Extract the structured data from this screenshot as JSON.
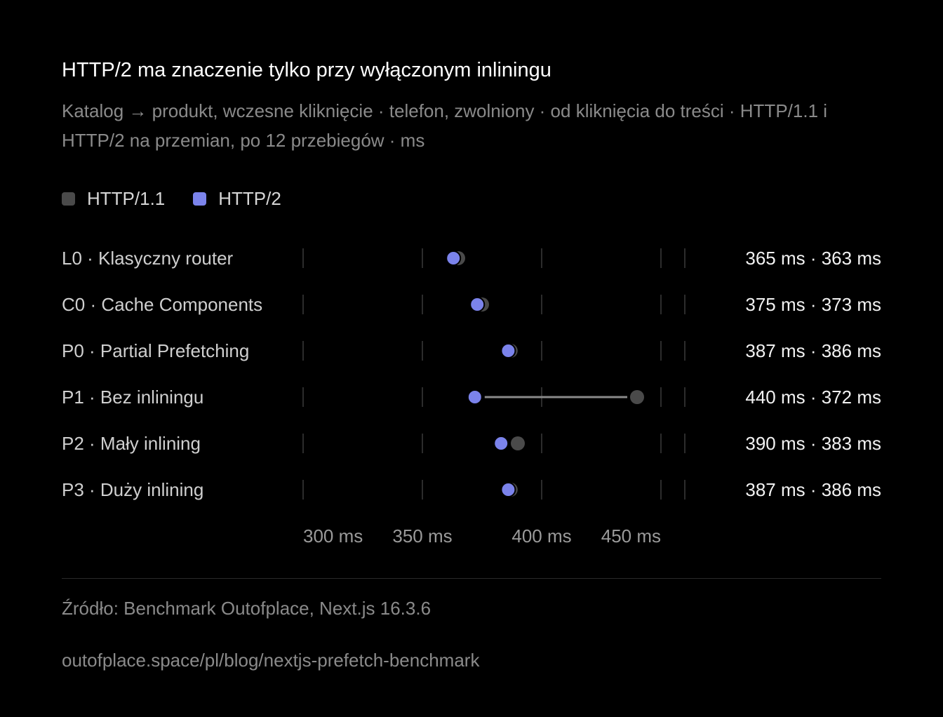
{
  "title": "HTTP/2 ma znaczenie tylko przy wyłączonym inliningu",
  "subtitle": "Katalog → produkt, wczesne kliknięcie · telefon, zwolniony · od kliknięcia do treści · HTTP/1.1 i HTTP/2 na przemian, po 12 przebiegów · ms",
  "legend": [
    {
      "label": "HTTP/1.1",
      "color": "#4a4a4a"
    },
    {
      "label": "HTTP/2",
      "color": "#7b83eb"
    }
  ],
  "footer": {
    "source": "Źródło: Benchmark Outofplace, Next.js 16.3.6",
    "url": "outofplace.space/pl/blog/nextjs-prefetch-benchmark"
  },
  "chart_data": {
    "type": "dumbbell",
    "categories": [
      "L0 · Klasyczny router",
      "C0 · Cache Components",
      "P0 · Partial Prefetching",
      "P1 · Bez inliningu",
      "P2 · Mały inlining",
      "P3 · Duży inlining"
    ],
    "series": [
      {
        "name": "HTTP/1.1",
        "color": "#4a4a4a",
        "values": [
          365,
          375,
          387,
          440,
          390,
          387
        ]
      },
      {
        "name": "HTTP/2",
        "color": "#7b83eb",
        "values": [
          363,
          373,
          386,
          372,
          383,
          386
        ]
      }
    ],
    "value_labels": [
      "365 ms · 363 ms",
      "375 ms · 373 ms",
      "387 ms · 386 ms",
      "440 ms · 372 ms",
      "390 ms · 383 ms",
      "387 ms · 386 ms"
    ],
    "x_ticks": [
      {
        "value": 300,
        "label": "300 ms"
      },
      {
        "value": 350,
        "label": "350 ms"
      },
      {
        "value": 400,
        "label": "400 ms"
      },
      {
        "value": 450,
        "label": "450 ms"
      }
    ],
    "xlim": [
      300,
      450
    ],
    "grid": true
  }
}
